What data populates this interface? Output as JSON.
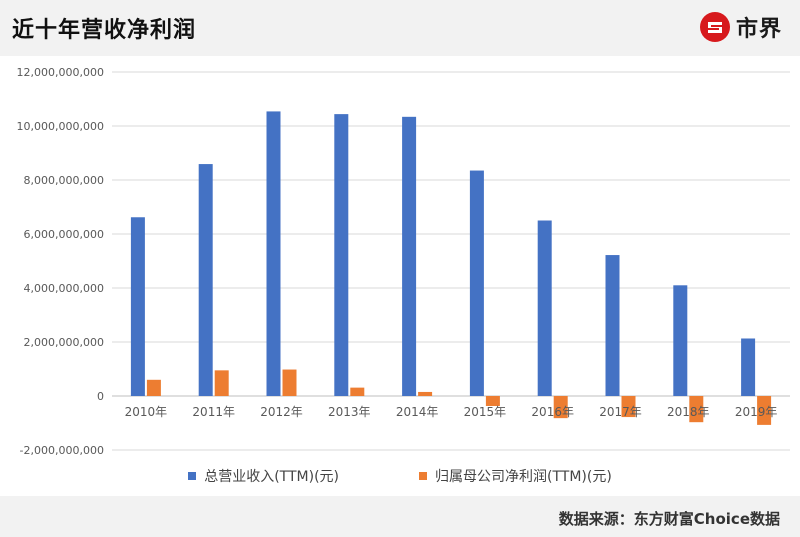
{
  "header": {
    "title": "近十年营收净利润",
    "logo_text": "市界"
  },
  "footer": {
    "source": "数据来源：东方财富Choice数据"
  },
  "colors": {
    "revenue": "#4472c4",
    "profit": "#ed7d31",
    "brand_red": "#d7191d"
  },
  "chart_data": {
    "type": "bar",
    "title": "",
    "xlabel": "",
    "ylabel": "",
    "categories": [
      "2010年",
      "2011年",
      "2012年",
      "2013年",
      "2014年",
      "2015年",
      "2016年",
      "2017年",
      "2018年",
      "2019年"
    ],
    "series": [
      {
        "name": "总营业收入(TTM)(元)",
        "color": "#4472c4",
        "values": [
          6620000000,
          8590000000,
          10540000000,
          10440000000,
          10340000000,
          8350000000,
          6500000000,
          5220000000,
          4100000000,
          2130000000
        ]
      },
      {
        "name": "归属母公司净利润(TTM)(元)",
        "color": "#ed7d31",
        "values": [
          600000000,
          950000000,
          980000000,
          310000000,
          150000000,
          -370000000,
          -820000000,
          -780000000,
          -970000000,
          -1070000000
        ]
      }
    ],
    "ylim": [
      -2000000000,
      12000000000
    ],
    "yticks": [
      "-2,000,000,000",
      "0",
      "2,000,000,000",
      "4,000,000,000",
      "6,000,000,000",
      "8,000,000,000",
      "10,000,000,000",
      "12,000,000,000"
    ],
    "ytick_values": [
      -2000000000,
      0,
      2000000000,
      4000000000,
      6000000000,
      8000000000,
      10000000000,
      12000000000
    ],
    "grid": true,
    "legend_position": "bottom"
  }
}
